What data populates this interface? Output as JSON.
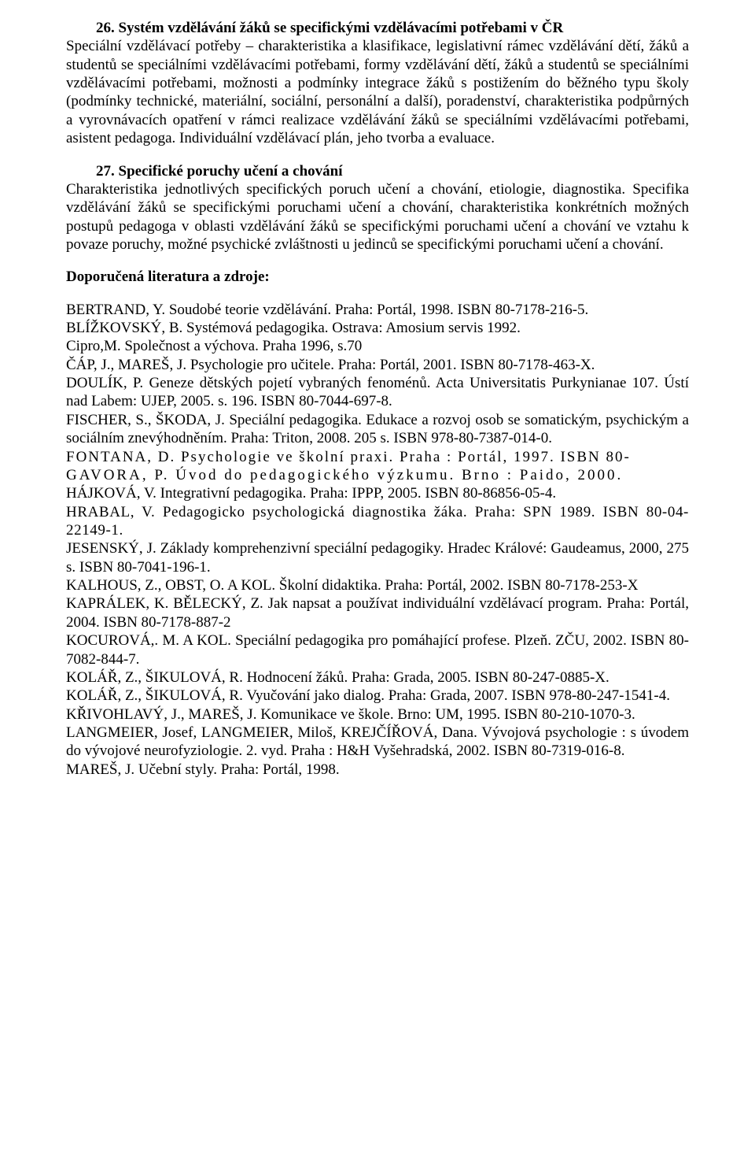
{
  "section26": {
    "heading": "26. Systém vzdělávání žáků se specifickými vzdělávacími potřebami v ČR",
    "body": "Speciální vzdělávací potřeby – charakteristika a klasifikace, legislativní rámec vzdělávání dětí, žáků a studentů se speciálními vzdělávacími potřebami, formy vzdělávání dětí, žáků a studentů se speciálními vzdělávacími potřebami, možnosti a podmínky integrace žáků s postižením do běžného typu školy (podmínky technické, materiální, sociální, personální a další), poradenství, charakteristika podpůrných a vyrovnávacích opatření v rámci realizace vzdělávání žáků se speciálními vzdělávacími potřebami, asistent pedagoga. Individuální vzdělávací plán, jeho tvorba a evaluace."
  },
  "section27": {
    "heading": "27. Specifické poruchy učení a chování",
    "body": "Charakteristika jednotlivých specifických poruch učení a chování, etiologie, diagnostika. Specifika vzdělávání žáků se specifickými poruchami učení a chování, charakteristika konkrétních možných postupů pedagoga v oblasti vzdělávání žáků se specifickými poruchami učení a chování ve vztahu k povaze poruchy, možné psychické zvláštnosti u jedinců se specifickými poruchami učení a chování."
  },
  "recommended": "Doporučená literatura a zdroje:",
  "refs": {
    "r1": "BERTRAND, Y. Soudobé teorie vzdělávání. Praha: Portál, 1998. ISBN 80-7178-216-5.",
    "r2": "BLÍŽKOVSKÝ, B. Systémová pedagogika. Ostrava: Amosium servis 1992.",
    "r3": "Cipro,M. Společnost a výchova. Praha 1996, s.70",
    "r4": "ČÁP, J., MAREŠ, J. Psychologie pro učitele. Praha: Portál, 2001. ISBN 80-7178-463-X.",
    "r5": "DOULÍK, P. Geneze dětských pojetí vybraných fenoménů. Acta Universitatis Purkynianae 107. Ústí nad Labem: UJEP, 2005. s. 196. ISBN 80-7044-697-8.",
    "r6": "FISCHER, S., ŠKODA, J. Speciální pedagogika. Edukace a rozvoj osob se somatickým, psychickým a sociálním znevýhodněním. Praha: Triton, 2008. 205 s. ISBN 978-80-7387-014-0.",
    "r7a": "FONTANA, D. Psychologie ve školní praxi. Praha : Portál, 1997. ISBN 80-",
    "r7b": "GAVORA, P. Úvod do pedagogického výzkumu. Brno : Paido, 2000.",
    "r8": "HÁJKOVÁ, V. Integrativní pedagogika. Praha: IPPP, 2005. ISBN 80-86856-05-4.",
    "r9": "HRABAL, V. Pedagogicko psychologická diagnostika žáka. Praha: SPN 1989. ISBN 80-04-22149-1.",
    "r10": "JESENSKÝ, J. Základy komprehenzivní speciální pedagogiky. Hradec Králové: Gaudeamus, 2000, 275 s. ISBN 80-7041-196-1.",
    "r11": "KALHOUS, Z., OBST, O. A KOL. Školní didaktika. Praha: Portál, 2002. ISBN  80-7178-253-X",
    "r12": "KAPRÁLEK, K. BĚLECKÝ, Z. Jak napsat a používat individuální vzdělávací program. Praha: Portál, 2004. ISBN 80-7178-887-2",
    "r13": "KOCUROVÁ,. M. A KOL. Speciální pedagogika pro pomáhající profese. Plzeň. ZČU, 2002. ISBN 80-7082-844-7.",
    "r14": "KOLÁŘ, Z., ŠIKULOVÁ, R. Hodnocení žáků. Praha: Grada, 2005. ISBN 80-247-0885-X.",
    "r15": "KOLÁŘ, Z., ŠIKULOVÁ, R. Vyučování jako dialog. Praha: Grada, 2007. ISBN 978-80-247-1541-4.",
    "r16": "KŘIVOHLAVÝ, J., MAREŠ, J. Komunikace ve škole. Brno: UM, 1995. ISBN 80-210-1070-3.",
    "r17": "LANGMEIER, Josef, LANGMEIER, Miloš, KREJČÍŘOVÁ, Dana. Vývojová psychologie : s úvodem do vývojové neurofyziologie. 2. vyd. Praha : H&H Vyšehradská, 2002. ISBN 80-7319-016-8.",
    "r18": "MAREŠ, J. Učební styly. Praha: Portál, 1998."
  }
}
